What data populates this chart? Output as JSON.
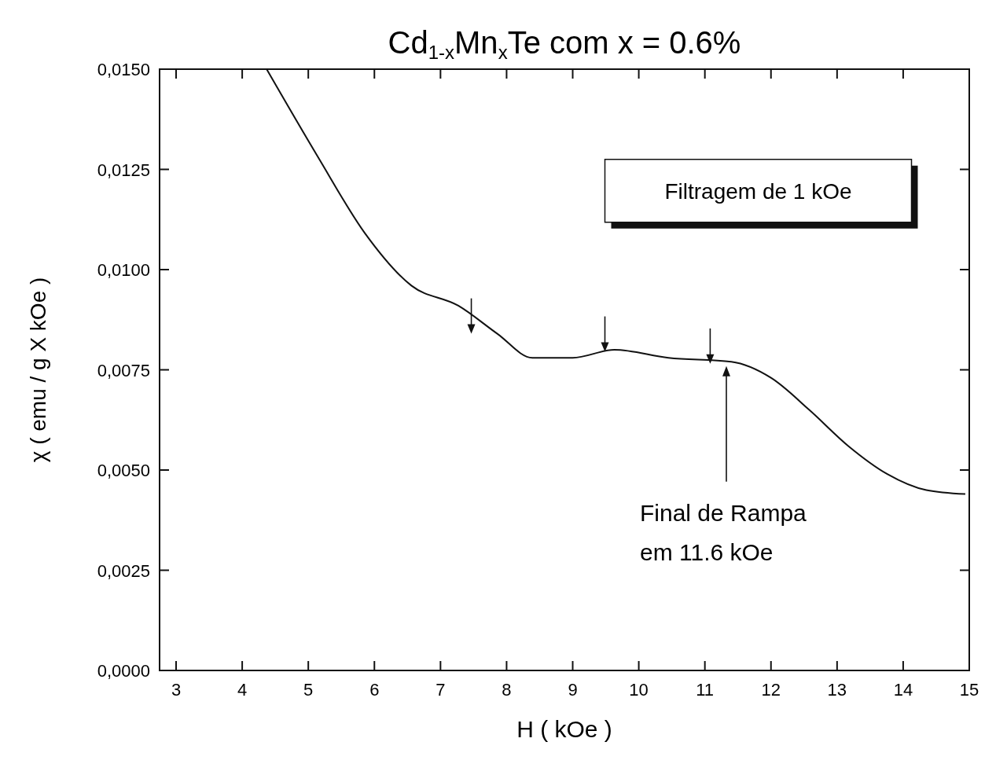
{
  "chart_data": {
    "type": "line",
    "title": "Cd$_{1-x}$Mn$_{x}$Te  com  x = 0.6%",
    "xlabel": "H ( kOe )",
    "ylabel": "χ ( emu / g X kOe )",
    "x": [
      4.37,
      5.15,
      5.86,
      6.56,
      7.27,
      7.86,
      8.39,
      9.0,
      9.63,
      10.45,
      11.4,
      12.0,
      12.58,
      13.17,
      13.76,
      14.35,
      14.94
    ],
    "series": [
      {
        "color": "#111111",
        "values": [
          0.015,
          0.0128,
          0.0109,
          0.0096,
          0.0091,
          0.0084,
          0.0078,
          0.0078,
          0.008,
          0.0078,
          0.0077,
          0.0073,
          0.0065,
          0.0056,
          0.0049,
          0.0045,
          0.0044
        ]
      }
    ],
    "xlim": [
      2.75,
      15
    ],
    "xticks": [
      3,
      4,
      5,
      6,
      7,
      8,
      9,
      10,
      11,
      12,
      13,
      14,
      15
    ],
    "ylim": [
      0,
      0.015
    ],
    "yticks": [
      {
        "value": 0,
        "label": "0,0000"
      },
      {
        "value": 0.0025,
        "label": "0,0025"
      },
      {
        "value": 0.005,
        "label": "0,0050"
      },
      {
        "value": 0.0075,
        "label": "0,0075"
      },
      {
        "value": 0.01,
        "label": "0,0100"
      },
      {
        "value": 0.0125,
        "label": "0,0125"
      },
      {
        "value": 0.015,
        "label": "0,0150"
      }
    ],
    "grid": false,
    "annotations": [
      "Filtragem de 1 kOe",
      "Final de Rampa\nem 11.6 kOe"
    ]
  }
}
